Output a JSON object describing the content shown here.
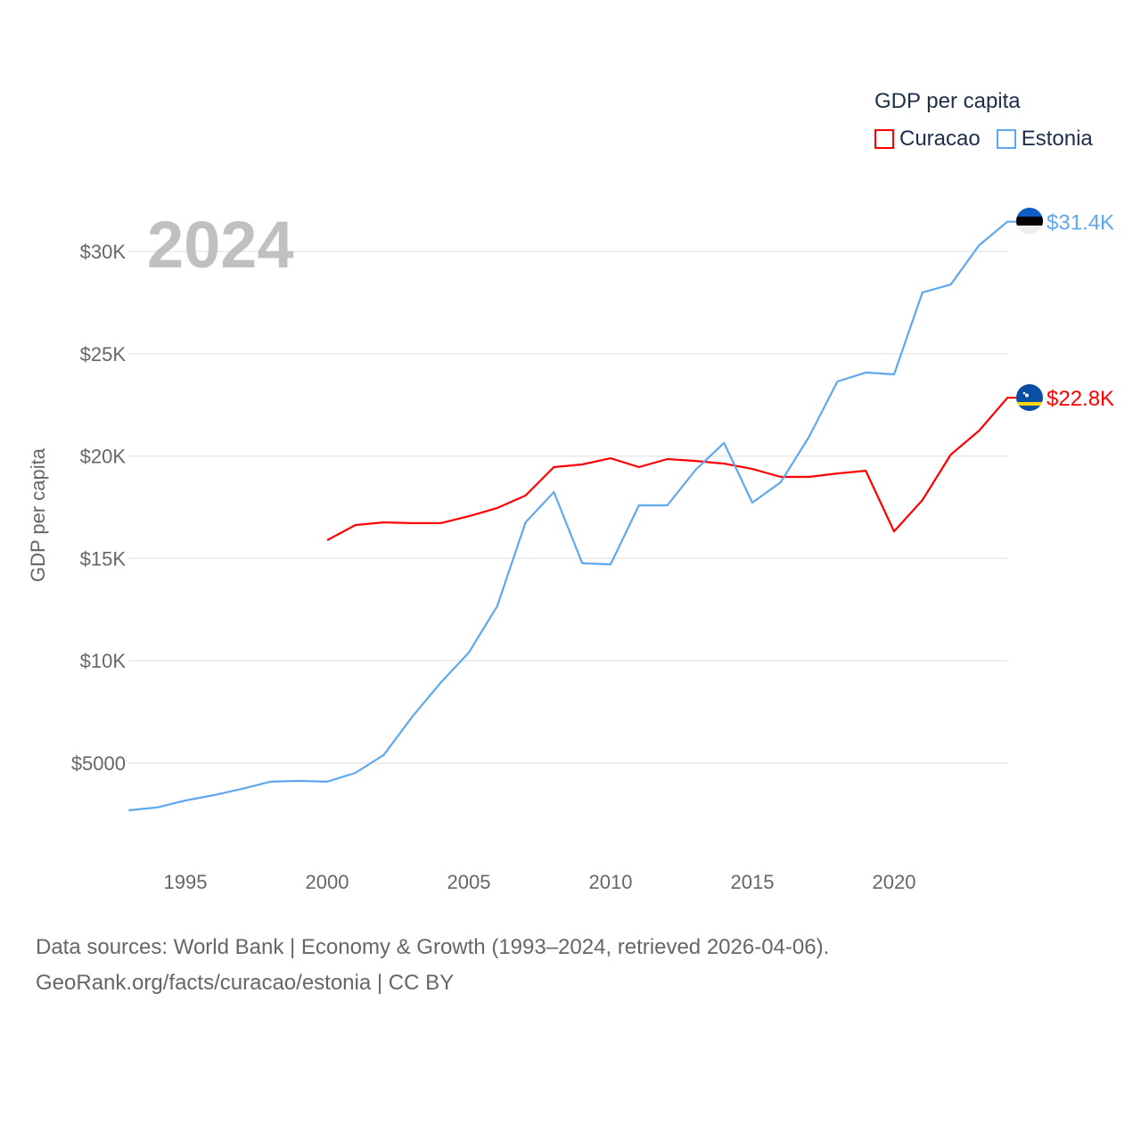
{
  "chart_data": {
    "type": "line",
    "title": "GDP per capita",
    "ylabel": "GDP per capita",
    "xlabel": "",
    "year_label": "2024",
    "xlim": [
      1993,
      2024
    ],
    "ylim": [
      0,
      32000
    ],
    "x_ticks": [
      {
        "value": 1995,
        "label": "1995"
      },
      {
        "value": 2000,
        "label": "2000"
      },
      {
        "value": 2005,
        "label": "2005"
      },
      {
        "value": 2010,
        "label": "2010"
      },
      {
        "value": 2015,
        "label": "2015"
      },
      {
        "value": 2020,
        "label": "2020"
      }
    ],
    "y_ticks": [
      {
        "value": 5000,
        "label": "$5000"
      },
      {
        "value": 10000,
        "label": "$10K"
      },
      {
        "value": 15000,
        "label": "$15K"
      },
      {
        "value": 20000,
        "label": "$20K"
      },
      {
        "value": 25000,
        "label": "$25K"
      },
      {
        "value": 30000,
        "label": "$30K"
      }
    ],
    "grid": true,
    "legend_placement": "top-right",
    "series": [
      {
        "name": "Curacao",
        "color": "#ff0000",
        "end_label": "$22.8K",
        "flag": "curacao-flag",
        "x": [
          2000,
          2001,
          2002,
          2003,
          2004,
          2005,
          2006,
          2007,
          2008,
          2009,
          2010,
          2011,
          2012,
          2013,
          2014,
          2015,
          2016,
          2017,
          2018,
          2019,
          2020,
          2021,
          2022,
          2023,
          2024
        ],
        "values": [
          15890,
          16630,
          16760,
          16720,
          16720,
          17060,
          17460,
          18070,
          19460,
          19590,
          19890,
          19460,
          19850,
          19760,
          19630,
          19370,
          18980,
          18980,
          19150,
          19280,
          16320,
          17850,
          20070,
          21240,
          22850
        ]
      },
      {
        "name": "Estonia",
        "color": "#5ea8f0",
        "end_label": "$31.4K",
        "flag": "estonia-flag",
        "x": [
          1993,
          1994,
          1995,
          1996,
          1997,
          1998,
          1999,
          2000,
          2001,
          2002,
          2003,
          2004,
          2005,
          2006,
          2007,
          2008,
          2009,
          2010,
          2011,
          2012,
          2013,
          2014,
          2015,
          2016,
          2017,
          2018,
          2019,
          2020,
          2021,
          2022,
          2023,
          2024
        ],
        "values": [
          2690,
          2830,
          3170,
          3430,
          3740,
          4090,
          4130,
          4090,
          4520,
          5400,
          7260,
          8920,
          10400,
          12670,
          16760,
          18240,
          14760,
          14710,
          17590,
          17590,
          19330,
          20640,
          17720,
          18720,
          20940,
          23640,
          24080,
          23990,
          27990,
          28380,
          30300,
          31450
        ]
      }
    ]
  },
  "footer": {
    "line1": "Data sources: World Bank | Economy & Growth (1993–2024, retrieved 2026-04-06).",
    "line2": "GeoRank.org/facts/curacao/estonia | CC BY"
  }
}
